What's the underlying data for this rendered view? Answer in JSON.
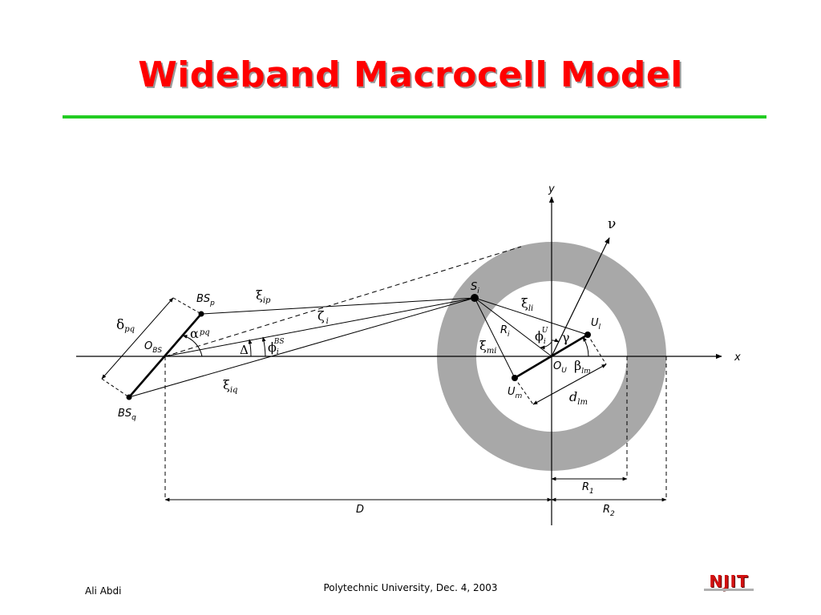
{
  "title": "Wideband Macrocell Model",
  "footer": {
    "author": "Ali Abdi",
    "venue": "Polytechnic University, Dec. 4, 2003",
    "logo_text": "NJIT"
  },
  "labels": {
    "y_axis": "y",
    "x_axis": "x",
    "nu": "ν",
    "bs_p": "BS",
    "bs_p_sub": "p",
    "bs_q": "BS",
    "bs_q_sub": "q",
    "o_bs": "O",
    "o_bs_sub": "BS",
    "delta_pq": "δ",
    "delta_pq_sub": "pq",
    "alpha_pq": "α",
    "alpha_pq_sub": "pq",
    "capital_delta": "Δ",
    "phi_bs": "ϕ",
    "phi_bs_sub": "i",
    "phi_bs_sup": "BS",
    "xi_ip": "ξ",
    "xi_ip_sub": "ip",
    "zeta_i": "ζ",
    "zeta_i_sub": "i",
    "xi_iq": "ξ",
    "xi_iq_sub": "iq",
    "s_i": "S",
    "s_i_sub": "i",
    "xi_li": "ξ",
    "xi_li_sub": "li",
    "r_i": "R",
    "r_i_sub": "i",
    "phi_u": "ϕ",
    "phi_u_sub": "i",
    "phi_u_sup": "U",
    "gamma": "γ",
    "u_l": "U",
    "u_l_sub": "l",
    "xi_mi": "ξ",
    "xi_mi_sub": "mi",
    "o_u": "O",
    "o_u_sub": "U",
    "beta_lm": "β",
    "beta_lm_sub": "lm",
    "u_m": "U",
    "u_m_sub": "m",
    "d_lm": "d",
    "d_lm_sub": "lm",
    "r1": "R",
    "r1_sub": "1",
    "r2": "R",
    "r2_sub": "2",
    "d_dist": "D"
  },
  "colors": {
    "title": "#ff0000",
    "title_rule": "#22cc22",
    "ring": "#a8a8a8",
    "ink": "#000000"
  }
}
